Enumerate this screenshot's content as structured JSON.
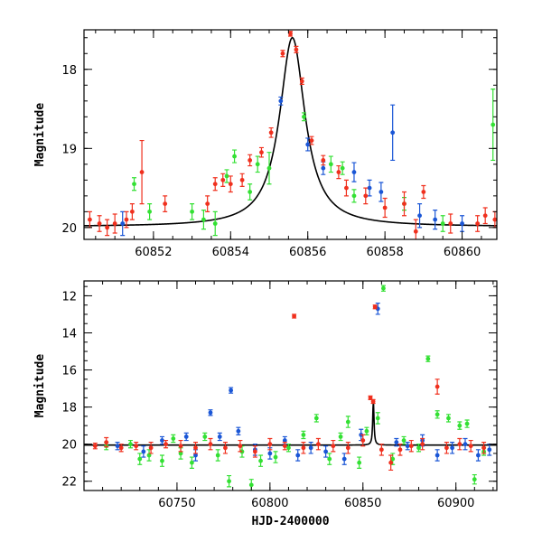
{
  "chart_data": [
    {
      "type": "scatter",
      "title": "",
      "xlabel": "",
      "ylabel": "Magnitude",
      "xlim": [
        60850.2,
        60860.9
      ],
      "ylim": [
        20.15,
        17.5
      ],
      "y_inverted": true,
      "xticks": [
        60852,
        60854,
        60856,
        60858,
        60860
      ],
      "yticks": [
        18,
        19,
        20
      ],
      "colors": {
        "blue": "#1a56d6",
        "green": "#33e033",
        "red": "#f0301e",
        "model": "#000000"
      },
      "model_curve": {
        "type": "lorentzian",
        "x0": 60855.6,
        "width": 0.4,
        "base": 19.99,
        "peak": 17.6
      },
      "series": [
        {
          "color": "green",
          "points": [
            {
              "x": 60851.5,
              "y": 19.45,
              "e": 0.08
            },
            {
              "x": 60851.9,
              "y": 19.8,
              "e": 0.1
            },
            {
              "x": 60853.0,
              "y": 19.8,
              "e": 0.1
            },
            {
              "x": 60853.3,
              "y": 19.9,
              "e": 0.12
            },
            {
              "x": 60853.6,
              "y": 19.95,
              "e": 0.15
            },
            {
              "x": 60853.9,
              "y": 19.35,
              "e": 0.08
            },
            {
              "x": 60854.1,
              "y": 19.1,
              "e": 0.08
            },
            {
              "x": 60854.5,
              "y": 19.55,
              "e": 0.1
            },
            {
              "x": 60854.7,
              "y": 19.2,
              "e": 0.1
            },
            {
              "x": 60855.0,
              "y": 19.25,
              "e": 0.2
            },
            {
              "x": 60855.9,
              "y": 18.6,
              "e": 0.05
            },
            {
              "x": 60856.6,
              "y": 19.2,
              "e": 0.1
            },
            {
              "x": 60856.9,
              "y": 19.25,
              "e": 0.08
            },
            {
              "x": 60857.2,
              "y": 19.6,
              "e": 0.08
            },
            {
              "x": 60858.5,
              "y": 19.7,
              "e": 0.08
            },
            {
              "x": 60859.5,
              "y": 19.95,
              "e": 0.1
            },
            {
              "x": 60860.8,
              "y": 18.7,
              "e": 0.45
            }
          ]
        },
        {
          "color": "blue",
          "points": [
            {
              "x": 60851.2,
              "y": 19.95,
              "e": 0.15
            },
            {
              "x": 60855.3,
              "y": 18.4,
              "e": 0.05
            },
            {
              "x": 60856.0,
              "y": 18.95,
              "e": 0.08
            },
            {
              "x": 60856.4,
              "y": 19.25,
              "e": 0.08
            },
            {
              "x": 60857.2,
              "y": 19.3,
              "e": 0.12
            },
            {
              "x": 60857.6,
              "y": 19.5,
              "e": 0.1
            },
            {
              "x": 60857.9,
              "y": 19.55,
              "e": 0.12
            },
            {
              "x": 60858.2,
              "y": 18.8,
              "e": 0.35
            },
            {
              "x": 60858.9,
              "y": 19.85,
              "e": 0.15
            },
            {
              "x": 60859.3,
              "y": 19.9,
              "e": 0.12
            },
            {
              "x": 60860.0,
              "y": 19.95,
              "e": 0.1
            }
          ]
        },
        {
          "color": "red",
          "points": [
            {
              "x": 60850.35,
              "y": 19.9,
              "e": 0.1
            },
            {
              "x": 60850.6,
              "y": 19.95,
              "e": 0.1
            },
            {
              "x": 60850.8,
              "y": 20.0,
              "e": 0.1
            },
            {
              "x": 60851.0,
              "y": 19.95,
              "e": 0.12
            },
            {
              "x": 60851.3,
              "y": 19.9,
              "e": 0.1
            },
            {
              "x": 60851.45,
              "y": 19.8,
              "e": 0.1
            },
            {
              "x": 60851.7,
              "y": 19.3,
              "e": 0.4
            },
            {
              "x": 60852.3,
              "y": 19.7,
              "e": 0.1
            },
            {
              "x": 60853.4,
              "y": 19.7,
              "e": 0.1
            },
            {
              "x": 60853.6,
              "y": 19.45,
              "e": 0.08
            },
            {
              "x": 60853.8,
              "y": 19.4,
              "e": 0.08
            },
            {
              "x": 60854.0,
              "y": 19.45,
              "e": 0.1
            },
            {
              "x": 60854.3,
              "y": 19.4,
              "e": 0.08
            },
            {
              "x": 60854.5,
              "y": 19.15,
              "e": 0.07
            },
            {
              "x": 60854.8,
              "y": 19.05,
              "e": 0.06
            },
            {
              "x": 60855.05,
              "y": 18.8,
              "e": 0.06
            },
            {
              "x": 60855.35,
              "y": 17.8,
              "e": 0.04
            },
            {
              "x": 60855.55,
              "y": 17.55,
              "e": 0.03
            },
            {
              "x": 60855.7,
              "y": 17.75,
              "e": 0.04
            },
            {
              "x": 60855.85,
              "y": 18.15,
              "e": 0.04
            },
            {
              "x": 60856.1,
              "y": 18.9,
              "e": 0.05
            },
            {
              "x": 60856.4,
              "y": 19.15,
              "e": 0.06
            },
            {
              "x": 60856.8,
              "y": 19.3,
              "e": 0.08
            },
            {
              "x": 60857.0,
              "y": 19.5,
              "e": 0.1
            },
            {
              "x": 60857.5,
              "y": 19.6,
              "e": 0.1
            },
            {
              "x": 60858.0,
              "y": 19.75,
              "e": 0.12
            },
            {
              "x": 60858.5,
              "y": 19.7,
              "e": 0.15
            },
            {
              "x": 60858.8,
              "y": 20.05,
              "e": 0.15
            },
            {
              "x": 60859.0,
              "y": 19.55,
              "e": 0.08
            },
            {
              "x": 60859.7,
              "y": 19.95,
              "e": 0.12
            },
            {
              "x": 60860.4,
              "y": 19.95,
              "e": 0.1
            },
            {
              "x": 60860.6,
              "y": 19.85,
              "e": 0.1
            },
            {
              "x": 60860.85,
              "y": 19.9,
              "e": 0.1
            }
          ]
        }
      ]
    },
    {
      "type": "scatter",
      "title": "",
      "xlabel": "HJD-2400000",
      "ylabel": "Magnitude",
      "xlim": [
        60700,
        60922
      ],
      "ylim": [
        22.5,
        11.2
      ],
      "y_inverted": true,
      "xticks": [
        60750,
        60800,
        60850,
        60900
      ],
      "yticks": [
        12,
        14,
        16,
        18,
        20,
        22
      ],
      "colors": {
        "blue": "#1a56d6",
        "green": "#33e033",
        "red": "#f0301e",
        "model": "#000000"
      },
      "model_curve": {
        "type": "lorentzian",
        "x0": 60855.6,
        "width": 0.4,
        "base": 20.05,
        "peak": 17.6
      },
      "series": [
        {
          "color": "green",
          "points": [
            {
              "x": 60712,
              "y": 20.1,
              "e": 0.2
            },
            {
              "x": 60725,
              "y": 20.0,
              "e": 0.2
            },
            {
              "x": 60730,
              "y": 20.8,
              "e": 0.3
            },
            {
              "x": 60735,
              "y": 20.6,
              "e": 0.3
            },
            {
              "x": 60742,
              "y": 20.9,
              "e": 0.3
            },
            {
              "x": 60748,
              "y": 19.7,
              "e": 0.2
            },
            {
              "x": 60752,
              "y": 20.5,
              "e": 0.3
            },
            {
              "x": 60758,
              "y": 21.0,
              "e": 0.3
            },
            {
              "x": 60765,
              "y": 19.6,
              "e": 0.2
            },
            {
              "x": 60772,
              "y": 20.6,
              "e": 0.3
            },
            {
              "x": 60778,
              "y": 22.0,
              "e": 0.3
            },
            {
              "x": 60785,
              "y": 20.4,
              "e": 0.3
            },
            {
              "x": 60790,
              "y": 22.2,
              "e": 0.3
            },
            {
              "x": 60795,
              "y": 20.9,
              "e": 0.3
            },
            {
              "x": 60803,
              "y": 20.7,
              "e": 0.3
            },
            {
              "x": 60810,
              "y": 20.2,
              "e": 0.2
            },
            {
              "x": 60818,
              "y": 19.5,
              "e": 0.2
            },
            {
              "x": 60825,
              "y": 18.6,
              "e": 0.2
            },
            {
              "x": 60832,
              "y": 20.8,
              "e": 0.3
            },
            {
              "x": 60838,
              "y": 19.6,
              "e": 0.2
            },
            {
              "x": 60842,
              "y": 18.8,
              "e": 0.3
            },
            {
              "x": 60848,
              "y": 21.0,
              "e": 0.3
            },
            {
              "x": 60852,
              "y": 19.3,
              "e": 0.2
            },
            {
              "x": 60858,
              "y": 18.6,
              "e": 0.3
            },
            {
              "x": 60861,
              "y": 11.6,
              "e": 0.15
            },
            {
              "x": 60866,
              "y": 20.8,
              "e": 0.3
            },
            {
              "x": 60872,
              "y": 19.8,
              "e": 0.2
            },
            {
              "x": 60880,
              "y": 20.2,
              "e": 0.2
            },
            {
              "x": 60885,
              "y": 15.4,
              "e": 0.15
            },
            {
              "x": 60890,
              "y": 18.4,
              "e": 0.2
            },
            {
              "x": 60896,
              "y": 18.6,
              "e": 0.2
            },
            {
              "x": 60902,
              "y": 19.0,
              "e": 0.2
            },
            {
              "x": 60906,
              "y": 18.9,
              "e": 0.2
            },
            {
              "x": 60910,
              "y": 21.9,
              "e": 0.25
            },
            {
              "x": 60915,
              "y": 20.4,
              "e": 0.2
            }
          ]
        },
        {
          "color": "blue",
          "points": [
            {
              "x": 60718,
              "y": 20.1,
              "e": 0.2
            },
            {
              "x": 60732,
              "y": 20.4,
              "e": 0.3
            },
            {
              "x": 60742,
              "y": 19.8,
              "e": 0.2
            },
            {
              "x": 60755,
              "y": 19.6,
              "e": 0.2
            },
            {
              "x": 60760,
              "y": 20.6,
              "e": 0.3
            },
            {
              "x": 60768,
              "y": 18.3,
              "e": 0.15
            },
            {
              "x": 60773,
              "y": 19.6,
              "e": 0.2
            },
            {
              "x": 60779,
              "y": 17.1,
              "e": 0.15
            },
            {
              "x": 60783,
              "y": 19.3,
              "e": 0.2
            },
            {
              "x": 60792,
              "y": 20.3,
              "e": 0.3
            },
            {
              "x": 60800,
              "y": 20.5,
              "e": 0.3
            },
            {
              "x": 60808,
              "y": 19.8,
              "e": 0.2
            },
            {
              "x": 60815,
              "y": 20.6,
              "e": 0.3
            },
            {
              "x": 60822,
              "y": 20.2,
              "e": 0.3
            },
            {
              "x": 60830,
              "y": 20.4,
              "e": 0.3
            },
            {
              "x": 60840,
              "y": 20.8,
              "e": 0.3
            },
            {
              "x": 60849,
              "y": 19.5,
              "e": 0.3
            },
            {
              "x": 60858,
              "y": 12.7,
              "e": 0.3
            },
            {
              "x": 60868,
              "y": 19.9,
              "e": 0.2
            },
            {
              "x": 60874,
              "y": 20.1,
              "e": 0.2
            },
            {
              "x": 60882,
              "y": 19.8,
              "e": 0.3
            },
            {
              "x": 60890,
              "y": 20.6,
              "e": 0.3
            },
            {
              "x": 60898,
              "y": 20.2,
              "e": 0.3
            },
            {
              "x": 60905,
              "y": 20.0,
              "e": 0.3
            },
            {
              "x": 60912,
              "y": 20.6,
              "e": 0.3
            },
            {
              "x": 60918,
              "y": 20.3,
              "e": 0.3
            }
          ]
        },
        {
          "color": "red",
          "points": [
            {
              "x": 60706,
              "y": 20.1,
              "e": 0.15
            },
            {
              "x": 60712,
              "y": 19.9,
              "e": 0.25
            },
            {
              "x": 60720,
              "y": 20.2,
              "e": 0.2
            },
            {
              "x": 60728,
              "y": 20.1,
              "e": 0.2
            },
            {
              "x": 60736,
              "y": 20.2,
              "e": 0.3
            },
            {
              "x": 60744,
              "y": 20.0,
              "e": 0.2
            },
            {
              "x": 60752,
              "y": 20.1,
              "e": 0.3
            },
            {
              "x": 60760,
              "y": 20.2,
              "e": 0.3
            },
            {
              "x": 60768,
              "y": 20.0,
              "e": 0.3
            },
            {
              "x": 60776,
              "y": 20.2,
              "e": 0.3
            },
            {
              "x": 60784,
              "y": 20.1,
              "e": 0.3
            },
            {
              "x": 60792,
              "y": 20.4,
              "e": 0.3
            },
            {
              "x": 60800,
              "y": 20.0,
              "e": 0.3
            },
            {
              "x": 60808,
              "y": 20.1,
              "e": 0.2
            },
            {
              "x": 60813,
              "y": 13.1,
              "e": 0.1
            },
            {
              "x": 60818,
              "y": 20.2,
              "e": 0.3
            },
            {
              "x": 60826,
              "y": 20.0,
              "e": 0.3
            },
            {
              "x": 60834,
              "y": 20.1,
              "e": 0.3
            },
            {
              "x": 60842,
              "y": 20.2,
              "e": 0.3
            },
            {
              "x": 60850,
              "y": 19.8,
              "e": 0.3
            },
            {
              "x": 60854,
              "y": 17.5,
              "e": 0.1
            },
            {
              "x": 60855.5,
              "y": 17.7,
              "e": 0.1
            },
            {
              "x": 60856.5,
              "y": 12.6,
              "e": 0.1
            },
            {
              "x": 60860,
              "y": 20.3,
              "e": 0.3
            },
            {
              "x": 60865,
              "y": 21.0,
              "e": 0.4
            },
            {
              "x": 60870,
              "y": 20.3,
              "e": 0.3
            },
            {
              "x": 60876,
              "y": 20.1,
              "e": 0.3
            },
            {
              "x": 60882,
              "y": 20.0,
              "e": 0.3
            },
            {
              "x": 60890,
              "y": 16.9,
              "e": 0.4
            },
            {
              "x": 60895,
              "y": 20.2,
              "e": 0.3
            },
            {
              "x": 60902,
              "y": 20.0,
              "e": 0.3
            },
            {
              "x": 60908,
              "y": 20.1,
              "e": 0.3
            },
            {
              "x": 60915,
              "y": 20.2,
              "e": 0.3
            }
          ]
        }
      ]
    }
  ]
}
